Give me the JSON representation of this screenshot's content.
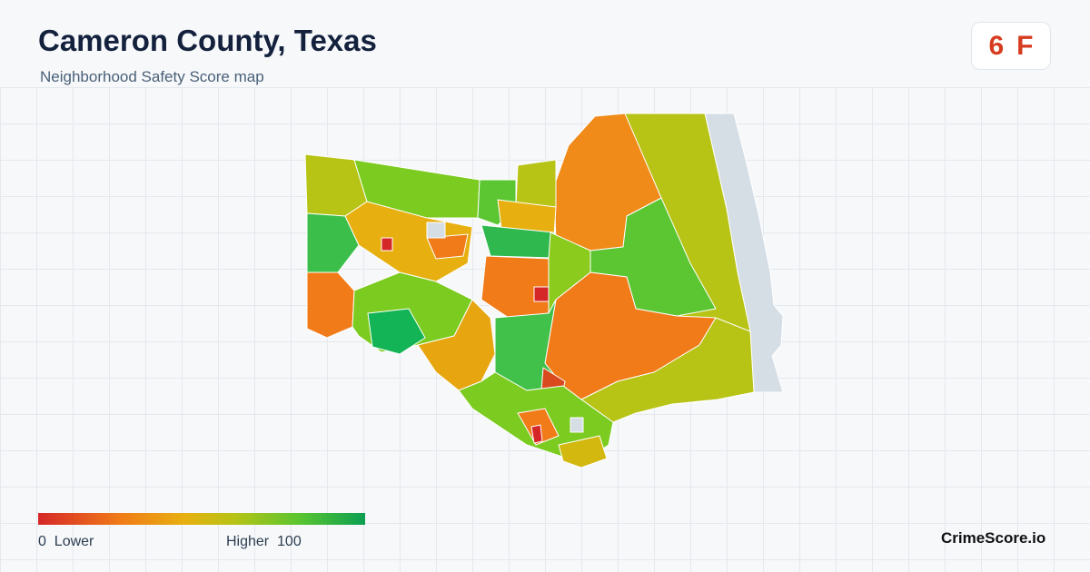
{
  "header": {
    "title": "Cameron County, Texas",
    "subtitle": "Neighborhood Safety Score map"
  },
  "grade": {
    "score": "6",
    "letter": "F",
    "color": "#d63b1f"
  },
  "legend": {
    "min_value": "0",
    "min_label": "Lower",
    "max_label": "Higher",
    "max_value": "100",
    "colors": [
      "#d62728",
      "#f07b18",
      "#e7b010",
      "#b7c315",
      "#59c530",
      "#0c9e52"
    ]
  },
  "brand": {
    "name": "CrimeScore.io"
  },
  "map": {
    "no_data_color": "#d5dde5",
    "region_colors": {
      "very_low": "#d62728",
      "low": "#f07b18",
      "mid_low": "#e7a510",
      "mid": "#b7c315",
      "mid_high": "#7ccb20",
      "high": "#41c04a",
      "very_high": "#12a656"
    }
  }
}
